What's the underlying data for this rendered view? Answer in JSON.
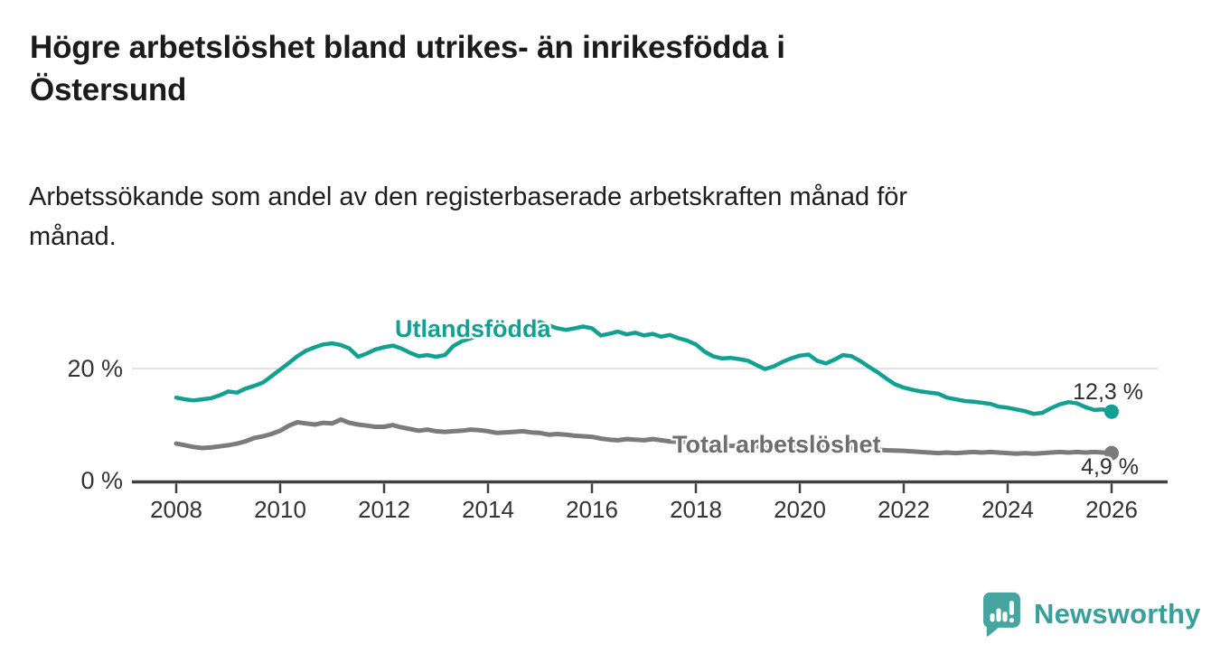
{
  "header": {
    "title": "Högre arbetslöshet bland utrikes- än inrikesfödda i\nÖstersund",
    "subtitle": "Arbetssökande som andel av den registerbaserade arbetskraften månad för\nmånad."
  },
  "footer": {
    "brand": "Newsworthy"
  },
  "colors": {
    "teal": "#12a092",
    "gray": "#7b7b7b",
    "axis": "#404040",
    "grid": "#dcdcdc",
    "tick_text": "#333333",
    "series_label_gray": "#6e6e6e",
    "value_text": "#2e2e2e",
    "logo_icon": "#46a59f",
    "logo_text": "#38a09a"
  },
  "chart_data": {
    "type": "line",
    "title": "Högre arbetslöshet bland utrikes- än inrikesfödda i Östersund",
    "subtitle": "Arbetssökande som andel av den registerbaserade arbetskraften månad för månad.",
    "xlabel": "",
    "ylabel": "",
    "grid": "horizontal, only at 20 %",
    "legend_position": "inline labels on lines",
    "x_axis": {
      "ticks": [
        2008,
        2010,
        2012,
        2014,
        2016,
        2018,
        2020,
        2022,
        2024,
        2026
      ],
      "range": [
        2007.2,
        2027.1
      ]
    },
    "y_axis": {
      "ticks": [
        {
          "value": 0,
          "label": "0 %"
        },
        {
          "value": 20,
          "label": "20 %"
        }
      ],
      "range": [
        0,
        30
      ],
      "gridline_values": [
        20
      ],
      "unit": "%"
    },
    "series": [
      {
        "name": "Utlandsfödda",
        "label": "Utlandsfödda",
        "color": "#12a092",
        "width": 4.5,
        "end_label": "12,3 %",
        "end_value": 12.3,
        "points": [
          [
            2008.0,
            14.8
          ],
          [
            2008.17,
            14.5
          ],
          [
            2008.33,
            14.3
          ],
          [
            2008.5,
            14.5
          ],
          [
            2008.67,
            14.7
          ],
          [
            2008.83,
            15.2
          ],
          [
            2009.0,
            15.9
          ],
          [
            2009.17,
            15.7
          ],
          [
            2009.33,
            16.4
          ],
          [
            2009.5,
            16.9
          ],
          [
            2009.67,
            17.5
          ],
          [
            2009.83,
            18.6
          ],
          [
            2010.0,
            19.8
          ],
          [
            2010.17,
            21.0
          ],
          [
            2010.33,
            22.2
          ],
          [
            2010.5,
            23.2
          ],
          [
            2010.67,
            23.8
          ],
          [
            2010.83,
            24.3
          ],
          [
            2011.0,
            24.5
          ],
          [
            2011.17,
            24.2
          ],
          [
            2011.33,
            23.6
          ],
          [
            2011.5,
            22.1
          ],
          [
            2011.67,
            22.7
          ],
          [
            2011.83,
            23.4
          ],
          [
            2012.0,
            23.8
          ],
          [
            2012.17,
            24.1
          ],
          [
            2012.33,
            23.6
          ],
          [
            2012.5,
            22.8
          ],
          [
            2012.67,
            22.2
          ],
          [
            2012.83,
            22.4
          ],
          [
            2013.0,
            22.1
          ],
          [
            2013.17,
            22.4
          ],
          [
            2013.33,
            24.0
          ],
          [
            2013.5,
            24.9
          ],
          [
            2013.67,
            25.4
          ],
          [
            2013.83,
            25.9
          ],
          [
            2014.0,
            26.2
          ],
          [
            2014.17,
            26.0
          ],
          [
            2014.33,
            26.4
          ],
          [
            2014.5,
            26.7
          ],
          [
            2014.67,
            26.9
          ],
          [
            2014.83,
            27.6
          ],
          [
            2015.0,
            28.3
          ],
          [
            2015.17,
            27.7
          ],
          [
            2015.33,
            27.2
          ],
          [
            2015.5,
            26.9
          ],
          [
            2015.67,
            27.2
          ],
          [
            2015.83,
            27.5
          ],
          [
            2016.0,
            27.2
          ],
          [
            2016.17,
            25.9
          ],
          [
            2016.33,
            26.2
          ],
          [
            2016.5,
            26.6
          ],
          [
            2016.67,
            26.1
          ],
          [
            2016.83,
            26.4
          ],
          [
            2017.0,
            25.9
          ],
          [
            2017.17,
            26.2
          ],
          [
            2017.33,
            25.7
          ],
          [
            2017.5,
            26.0
          ],
          [
            2017.67,
            25.4
          ],
          [
            2017.83,
            25.0
          ],
          [
            2018.0,
            24.3
          ],
          [
            2018.17,
            23.0
          ],
          [
            2018.33,
            22.2
          ],
          [
            2018.5,
            21.8
          ],
          [
            2018.67,
            21.9
          ],
          [
            2018.83,
            21.7
          ],
          [
            2019.0,
            21.4
          ],
          [
            2019.17,
            20.6
          ],
          [
            2019.33,
            19.9
          ],
          [
            2019.5,
            20.4
          ],
          [
            2019.67,
            21.2
          ],
          [
            2019.83,
            21.8
          ],
          [
            2020.0,
            22.3
          ],
          [
            2020.17,
            22.5
          ],
          [
            2020.33,
            21.4
          ],
          [
            2020.5,
            20.9
          ],
          [
            2020.67,
            21.6
          ],
          [
            2020.83,
            22.4
          ],
          [
            2021.0,
            22.2
          ],
          [
            2021.17,
            21.3
          ],
          [
            2021.33,
            20.3
          ],
          [
            2021.5,
            19.3
          ],
          [
            2021.67,
            18.2
          ],
          [
            2021.83,
            17.2
          ],
          [
            2022.0,
            16.6
          ],
          [
            2022.17,
            16.2
          ],
          [
            2022.33,
            15.9
          ],
          [
            2022.5,
            15.7
          ],
          [
            2022.67,
            15.5
          ],
          [
            2022.83,
            14.8
          ],
          [
            2023.0,
            14.5
          ],
          [
            2023.17,
            14.2
          ],
          [
            2023.33,
            14.1
          ],
          [
            2023.5,
            13.9
          ],
          [
            2023.67,
            13.7
          ],
          [
            2023.83,
            13.2
          ],
          [
            2024.0,
            13.0
          ],
          [
            2024.17,
            12.7
          ],
          [
            2024.33,
            12.4
          ],
          [
            2024.5,
            11.9
          ],
          [
            2024.67,
            12.1
          ],
          [
            2024.83,
            12.9
          ],
          [
            2025.0,
            13.6
          ],
          [
            2025.17,
            14.0
          ],
          [
            2025.33,
            13.8
          ],
          [
            2025.5,
            13.1
          ],
          [
            2025.67,
            12.6
          ],
          [
            2025.83,
            12.7
          ],
          [
            2026.0,
            12.3
          ]
        ]
      },
      {
        "name": "Total arbetslöshet",
        "label": "Total arbetslöshet",
        "color": "#7b7b7b",
        "width": 5,
        "end_label": "4,9 %",
        "end_value": 4.9,
        "points": [
          [
            2008.0,
            6.6
          ],
          [
            2008.17,
            6.3
          ],
          [
            2008.33,
            6.0
          ],
          [
            2008.5,
            5.8
          ],
          [
            2008.67,
            5.9
          ],
          [
            2008.83,
            6.1
          ],
          [
            2009.0,
            6.3
          ],
          [
            2009.17,
            6.6
          ],
          [
            2009.33,
            7.0
          ],
          [
            2009.5,
            7.6
          ],
          [
            2009.67,
            7.9
          ],
          [
            2009.83,
            8.3
          ],
          [
            2010.0,
            8.9
          ],
          [
            2010.17,
            9.8
          ],
          [
            2010.33,
            10.4
          ],
          [
            2010.5,
            10.2
          ],
          [
            2010.67,
            10.0
          ],
          [
            2010.83,
            10.3
          ],
          [
            2011.0,
            10.2
          ],
          [
            2011.17,
            10.9
          ],
          [
            2011.33,
            10.3
          ],
          [
            2011.5,
            10.0
          ],
          [
            2011.67,
            9.8
          ],
          [
            2011.83,
            9.6
          ],
          [
            2012.0,
            9.6
          ],
          [
            2012.17,
            9.9
          ],
          [
            2012.33,
            9.5
          ],
          [
            2012.5,
            9.2
          ],
          [
            2012.67,
            8.9
          ],
          [
            2012.83,
            9.1
          ],
          [
            2013.0,
            8.8
          ],
          [
            2013.17,
            8.7
          ],
          [
            2013.33,
            8.8
          ],
          [
            2013.5,
            8.9
          ],
          [
            2013.67,
            9.1
          ],
          [
            2013.83,
            9.0
          ],
          [
            2014.0,
            8.8
          ],
          [
            2014.17,
            8.5
          ],
          [
            2014.33,
            8.6
          ],
          [
            2014.5,
            8.7
          ],
          [
            2014.67,
            8.8
          ],
          [
            2014.83,
            8.6
          ],
          [
            2015.0,
            8.5
          ],
          [
            2015.17,
            8.2
          ],
          [
            2015.33,
            8.3
          ],
          [
            2015.5,
            8.2
          ],
          [
            2015.67,
            8.0
          ],
          [
            2015.83,
            7.9
          ],
          [
            2016.0,
            7.8
          ],
          [
            2016.17,
            7.5
          ],
          [
            2016.33,
            7.3
          ],
          [
            2016.5,
            7.2
          ],
          [
            2016.67,
            7.4
          ],
          [
            2016.83,
            7.3
          ],
          [
            2017.0,
            7.2
          ],
          [
            2017.17,
            7.4
          ],
          [
            2017.33,
            7.2
          ],
          [
            2017.5,
            7.0
          ],
          [
            2017.67,
            6.9
          ],
          [
            2017.83,
            6.8
          ],
          [
            2018.0,
            6.6
          ],
          [
            2018.33,
            6.4
          ],
          [
            2018.67,
            6.2
          ],
          [
            2019.0,
            6.2
          ],
          [
            2019.33,
            6.0
          ],
          [
            2019.67,
            6.1
          ],
          [
            2020.0,
            6.3
          ],
          [
            2020.33,
            6.1
          ],
          [
            2020.67,
            5.9
          ],
          [
            2021.0,
            5.8
          ],
          [
            2021.33,
            5.6
          ],
          [
            2021.67,
            5.4
          ],
          [
            2022.0,
            5.3
          ],
          [
            2022.33,
            5.1
          ],
          [
            2022.5,
            5.0
          ],
          [
            2022.67,
            4.9
          ],
          [
            2022.83,
            5.0
          ],
          [
            2023.0,
            4.9
          ],
          [
            2023.17,
            5.0
          ],
          [
            2023.33,
            5.1
          ],
          [
            2023.5,
            5.0
          ],
          [
            2023.67,
            5.1
          ],
          [
            2023.83,
            5.0
          ],
          [
            2024.0,
            4.9
          ],
          [
            2024.17,
            4.8
          ],
          [
            2024.33,
            4.9
          ],
          [
            2024.5,
            4.8
          ],
          [
            2024.67,
            4.9
          ],
          [
            2024.83,
            5.0
          ],
          [
            2025.0,
            5.1
          ],
          [
            2025.17,
            5.0
          ],
          [
            2025.33,
            5.1
          ],
          [
            2025.5,
            5.0
          ],
          [
            2025.67,
            5.1
          ],
          [
            2025.83,
            5.0
          ],
          [
            2026.0,
            4.9
          ]
        ]
      }
    ]
  }
}
